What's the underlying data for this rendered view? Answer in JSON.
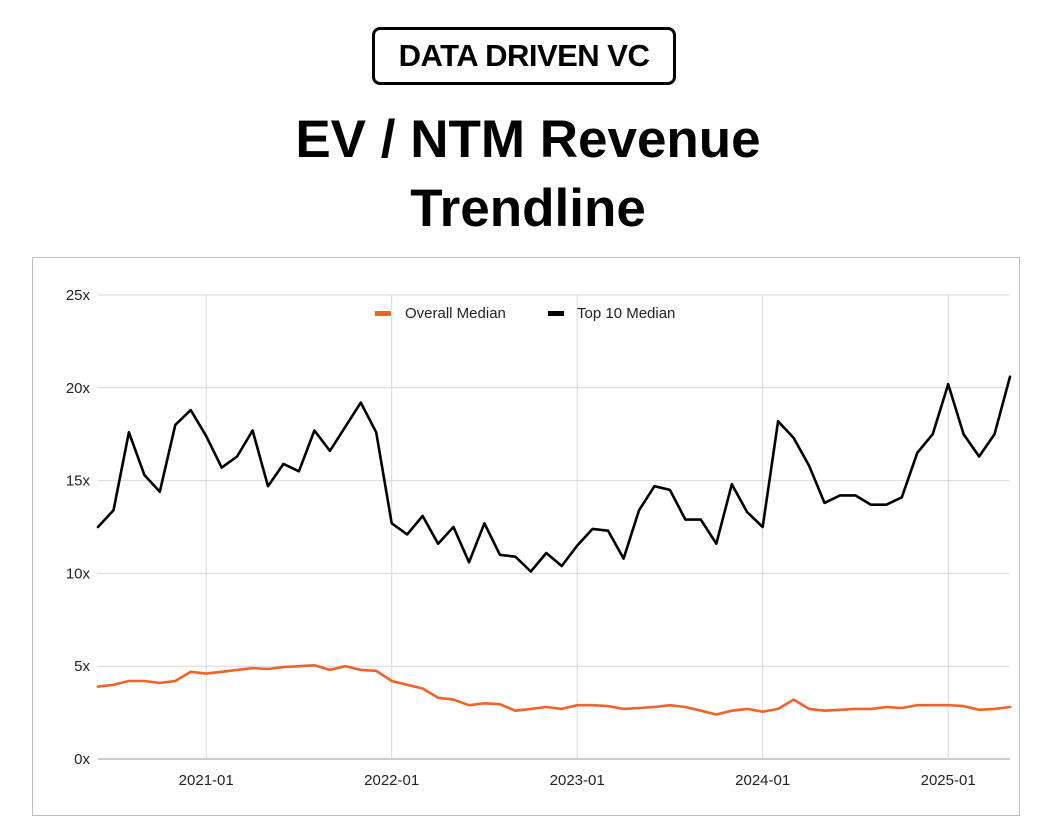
{
  "logo": "DATA DRIVEN VC",
  "title_line1": "EV / NTM Revenue",
  "title_line2": "Trendline",
  "colors": {
    "overall": "#f4622a",
    "top10": "#000000",
    "grid": "#d9d9d9"
  },
  "chart_data": {
    "type": "line",
    "xlabel": "",
    "ylabel": "",
    "ylim": [
      0,
      25
    ],
    "yticks": [
      "0x",
      "5x",
      "10x",
      "15x",
      "20x",
      "25x"
    ],
    "ytick_values": [
      0,
      5,
      10,
      15,
      20,
      25
    ],
    "xtick_labels": [
      "2021-01",
      "2022-01",
      "2023-01",
      "2024-01",
      "2025-01"
    ],
    "xtick_values": [
      "2021-01",
      "2022-01",
      "2023-01",
      "2024-01",
      "2025-01"
    ],
    "xlim": [
      "2020-06",
      "2025-05"
    ],
    "grid": true,
    "legend": "top-center",
    "x": [
      "2020-06",
      "2020-07",
      "2020-08",
      "2020-09",
      "2020-10",
      "2020-11",
      "2020-12",
      "2021-01",
      "2021-02",
      "2021-03",
      "2021-04",
      "2021-05",
      "2021-06",
      "2021-07",
      "2021-08",
      "2021-09",
      "2021-10",
      "2021-11",
      "2021-12",
      "2022-01",
      "2022-02",
      "2022-03",
      "2022-04",
      "2022-05",
      "2022-06",
      "2022-07",
      "2022-08",
      "2022-09",
      "2022-10",
      "2022-11",
      "2022-12",
      "2023-01",
      "2023-02",
      "2023-03",
      "2023-04",
      "2023-05",
      "2023-06",
      "2023-07",
      "2023-08",
      "2023-09",
      "2023-10",
      "2023-11",
      "2023-12",
      "2024-01",
      "2024-02",
      "2024-03",
      "2024-04",
      "2024-05",
      "2024-06",
      "2024-07",
      "2024-08",
      "2024-09",
      "2024-10",
      "2024-11",
      "2024-12",
      "2025-01",
      "2025-02",
      "2025-03",
      "2025-04",
      "2025-05"
    ],
    "series": [
      {
        "name": "Overall Median",
        "color": "#f4622a",
        "values": [
          3.9,
          4.0,
          4.2,
          4.2,
          4.1,
          4.2,
          4.7,
          4.6,
          4.7,
          4.8,
          4.9,
          4.85,
          4.95,
          5.0,
          5.05,
          4.8,
          5.0,
          4.8,
          4.75,
          4.2,
          4.0,
          3.8,
          3.3,
          3.2,
          2.9,
          3.0,
          2.95,
          2.6,
          2.7,
          2.8,
          2.7,
          2.9,
          2.9,
          2.85,
          2.7,
          2.75,
          2.8,
          2.9,
          2.8,
          2.6,
          2.4,
          2.6,
          2.7,
          2.55,
          2.7,
          3.2,
          2.7,
          2.6,
          2.65,
          2.7,
          2.7,
          2.8,
          2.75,
          2.9,
          2.9,
          2.9,
          2.85,
          2.65,
          2.7,
          2.8
        ]
      },
      {
        "name": "Top 10 Median",
        "color": "#000000",
        "values": [
          12.5,
          13.4,
          17.6,
          15.3,
          14.4,
          18.0,
          18.8,
          17.4,
          15.7,
          16.3,
          17.7,
          14.7,
          15.9,
          15.5,
          17.7,
          16.6,
          17.9,
          19.2,
          17.6,
          12.7,
          12.1,
          13.1,
          11.6,
          12.5,
          10.6,
          12.7,
          11.0,
          10.9,
          10.1,
          11.1,
          10.4,
          11.5,
          12.4,
          12.3,
          10.8,
          13.4,
          14.7,
          14.5,
          12.9,
          12.9,
          11.6,
          14.8,
          13.3,
          12.5,
          18.2,
          17.3,
          15.8,
          13.8,
          14.2,
          14.2,
          13.7,
          13.7,
          14.1,
          16.5,
          17.5,
          20.2,
          17.5,
          16.3,
          17.5,
          20.6
        ]
      }
    ]
  }
}
